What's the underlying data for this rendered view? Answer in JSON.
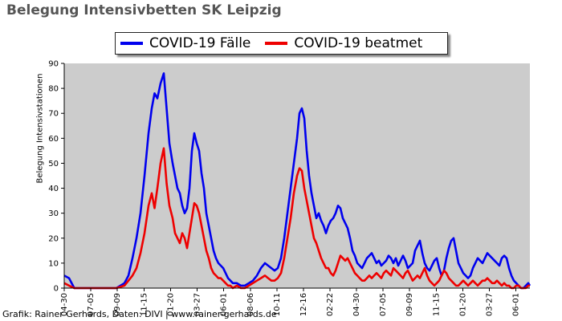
{
  "title": "Belegung Intensivbetten SK Leipzig",
  "credit": "Grafik: Rainer Gerhards, Daten: DIVI | www.rainer-gerhards.de",
  "chart_data": {
    "type": "line",
    "ylabel": "Belegung Intensivstationen",
    "ylim": [
      0,
      90
    ],
    "yticks": [
      0,
      10,
      20,
      30,
      40,
      50,
      60,
      70,
      80,
      90
    ],
    "xlim": [
      0,
      1160
    ],
    "plot_background": "#cccccc",
    "grid": false,
    "legend_position": "top-center",
    "x_tick_labels": [
      {
        "x": 0,
        "label": "04-30"
      },
      {
        "x": 66,
        "label": "07-05"
      },
      {
        "x": 132,
        "label": "09-09"
      },
      {
        "x": 199,
        "label": "11-15"
      },
      {
        "x": 265,
        "label": "01-20"
      },
      {
        "x": 331,
        "label": "03-27"
      },
      {
        "x": 397,
        "label": "06-01"
      },
      {
        "x": 464,
        "label": "08-06"
      },
      {
        "x": 530,
        "label": "10-11"
      },
      {
        "x": 596,
        "label": "12-16"
      },
      {
        "x": 662,
        "label": "02-22"
      },
      {
        "x": 728,
        "label": "04-30"
      },
      {
        "x": 794,
        "label": "07-05"
      },
      {
        "x": 860,
        "label": "09-09"
      },
      {
        "x": 927,
        "label": "11-15"
      },
      {
        "x": 993,
        "label": "01-20"
      },
      {
        "x": 1059,
        "label": "03-27"
      },
      {
        "x": 1125,
        "label": "06-01"
      }
    ],
    "series": [
      {
        "name": "COVID-19 Fälle",
        "color": "#0000ee",
        "x": [
          0,
          12,
          25,
          45,
          70,
          100,
          130,
          150,
          160,
          170,
          180,
          190,
          200,
          210,
          218,
          225,
          232,
          240,
          248,
          255,
          262,
          270,
          276,
          282,
          288,
          294,
          300,
          306,
          312,
          318,
          324,
          330,
          336,
          342,
          348,
          354,
          360,
          366,
          372,
          378,
          384,
          390,
          396,
          402,
          408,
          414,
          420,
          430,
          440,
          450,
          460,
          470,
          480,
          490,
          500,
          508,
          516,
          524,
          532,
          540,
          548,
          556,
          564,
          572,
          580,
          586,
          592,
          598,
          604,
          610,
          616,
          622,
          628,
          634,
          640,
          646,
          652,
          658,
          664,
          670,
          676,
          682,
          688,
          694,
          700,
          706,
          712,
          718,
          724,
          730,
          736,
          742,
          748,
          754,
          760,
          766,
          772,
          778,
          784,
          790,
          796,
          802,
          808,
          814,
          820,
          826,
          832,
          838,
          844,
          850,
          856,
          862,
          868,
          874,
          880,
          886,
          892,
          898,
          904,
          910,
          916,
          922,
          928,
          934,
          940,
          946,
          952,
          958,
          964,
          970,
          976,
          982,
          988,
          994,
          1000,
          1006,
          1012,
          1018,
          1024,
          1030,
          1036,
          1042,
          1048,
          1054,
          1060,
          1066,
          1072,
          1078,
          1084,
          1090,
          1096,
          1102,
          1108,
          1114,
          1120,
          1126,
          1132,
          1138,
          1144,
          1150,
          1156,
          1160
        ],
        "y": [
          5,
          4,
          0,
          0,
          0,
          0,
          0,
          2,
          5,
          12,
          20,
          30,
          45,
          62,
          72,
          78,
          76,
          82,
          86,
          72,
          58,
          50,
          45,
          40,
          38,
          33,
          30,
          32,
          40,
          55,
          62,
          58,
          55,
          46,
          40,
          30,
          25,
          20,
          15,
          12,
          10,
          9,
          8,
          6,
          4,
          3,
          2,
          2,
          1,
          1,
          2,
          3,
          5,
          8,
          10,
          9,
          8,
          7,
          8,
          12,
          20,
          30,
          40,
          50,
          60,
          70,
          72,
          68,
          55,
          45,
          38,
          33,
          28,
          30,
          27,
          25,
          22,
          25,
          27,
          28,
          30,
          33,
          32,
          28,
          26,
          24,
          20,
          15,
          13,
          10,
          9,
          8,
          10,
          12,
          13,
          14,
          12,
          10,
          11,
          9,
          10,
          11,
          13,
          12,
          10,
          12,
          9,
          11,
          13,
          11,
          8,
          9,
          10,
          15,
          17,
          19,
          14,
          10,
          8,
          7,
          9,
          11,
          12,
          8,
          5,
          7,
          12,
          16,
          19,
          20,
          15,
          10,
          8,
          6,
          5,
          4,
          5,
          8,
          10,
          12,
          11,
          10,
          12,
          14,
          13,
          12,
          11,
          10,
          9,
          12,
          13,
          12,
          8,
          5,
          3,
          2,
          1,
          0,
          0,
          1,
          2,
          1
        ]
      },
      {
        "name": "COVID-19 beatmet",
        "color": "#ee0000",
        "x": [
          0,
          12,
          25,
          45,
          70,
          100,
          130,
          150,
          160,
          170,
          180,
          190,
          200,
          210,
          218,
          225,
          232,
          240,
          248,
          255,
          262,
          270,
          276,
          282,
          288,
          294,
          300,
          306,
          312,
          318,
          324,
          330,
          336,
          342,
          348,
          354,
          360,
          366,
          372,
          378,
          384,
          390,
          396,
          402,
          408,
          414,
          420,
          430,
          440,
          450,
          460,
          470,
          480,
          490,
          500,
          508,
          516,
          524,
          532,
          540,
          548,
          556,
          564,
          572,
          580,
          586,
          592,
          598,
          604,
          610,
          616,
          622,
          628,
          634,
          640,
          646,
          652,
          658,
          664,
          670,
          676,
          682,
          688,
          694,
          700,
          706,
          712,
          718,
          724,
          730,
          736,
          742,
          748,
          754,
          760,
          766,
          772,
          778,
          784,
          790,
          796,
          802,
          808,
          814,
          820,
          826,
          832,
          838,
          844,
          850,
          856,
          862,
          868,
          874,
          880,
          886,
          892,
          898,
          904,
          910,
          916,
          922,
          928,
          934,
          940,
          946,
          952,
          958,
          964,
          970,
          976,
          982,
          988,
          994,
          1000,
          1006,
          1012,
          1018,
          1024,
          1030,
          1036,
          1042,
          1048,
          1054,
          1060,
          1066,
          1072,
          1078,
          1084,
          1090,
          1096,
          1102,
          1108,
          1114,
          1120,
          1126,
          1132,
          1138,
          1144,
          1150,
          1156,
          1160
        ],
        "y": [
          2,
          1,
          0,
          0,
          0,
          0,
          0,
          1,
          3,
          5,
          8,
          14,
          22,
          33,
          38,
          32,
          40,
          50,
          56,
          42,
          33,
          28,
          22,
          20,
          18,
          22,
          20,
          16,
          22,
          28,
          34,
          33,
          30,
          25,
          20,
          15,
          12,
          8,
          6,
          5,
          4,
          4,
          3,
          2,
          1,
          1,
          0,
          1,
          0,
          0,
          1,
          2,
          3,
          4,
          5,
          4,
          3,
          3,
          4,
          6,
          12,
          20,
          28,
          38,
          45,
          48,
          47,
          40,
          35,
          30,
          25,
          20,
          18,
          15,
          12,
          10,
          8,
          8,
          6,
          5,
          7,
          10,
          13,
          12,
          11,
          12,
          10,
          8,
          6,
          5,
          4,
          3,
          3,
          4,
          5,
          4,
          5,
          6,
          5,
          4,
          6,
          7,
          6,
          5,
          8,
          7,
          6,
          5,
          4,
          6,
          7,
          5,
          3,
          4,
          5,
          4,
          6,
          8,
          5,
          3,
          2,
          1,
          2,
          3,
          5,
          7,
          6,
          4,
          3,
          2,
          1,
          1,
          2,
          3,
          2,
          1,
          2,
          3,
          2,
          1,
          2,
          3,
          3,
          4,
          3,
          2,
          2,
          3,
          2,
          1,
          2,
          1,
          1,
          0,
          0,
          1,
          1,
          0,
          0,
          0,
          1,
          1
        ]
      }
    ]
  }
}
